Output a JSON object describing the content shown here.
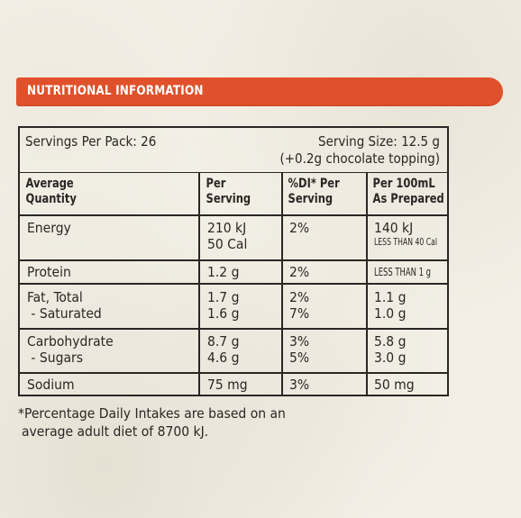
{
  "banner": {
    "title": "NUTRITIONAL INFORMATION"
  },
  "panel": {
    "servings_per_pack": "Servings Per Pack: 26",
    "serving_size_line1": "Serving Size: 12.5 g",
    "serving_size_line2": "(+0.2g chocolate topping)"
  },
  "columns": {
    "quantity": [
      "Average",
      "Quantity"
    ],
    "per_serving": [
      "Per",
      "Serving"
    ],
    "di_per_serving": [
      "%DI* Per",
      "Serving"
    ],
    "per_100ml": [
      "Per 100mL",
      "As Prepared"
    ]
  },
  "rows": [
    {
      "name": [
        "Energy"
      ],
      "per_serving": [
        "210 kJ",
        "50 Cal"
      ],
      "di": [
        "2%"
      ],
      "per_100ml": [
        "140 kJ"
      ],
      "per_100ml_small": [
        "LESS THAN 40 Cal"
      ]
    },
    {
      "name": [
        "Protein"
      ],
      "per_serving": [
        "1.2 g"
      ],
      "di": [
        "2%"
      ],
      "per_100ml": [],
      "per_100ml_small": [
        "LESS THAN 1 g"
      ]
    },
    {
      "name": [
        "Fat, Total",
        " - Saturated"
      ],
      "per_serving": [
        "1.7 g",
        "1.6 g"
      ],
      "di": [
        "2%",
        "7%"
      ],
      "per_100ml": [
        "1.1 g",
        "1.0 g"
      ],
      "per_100ml_small": []
    },
    {
      "name": [
        "Carbohydrate",
        " - Sugars"
      ],
      "per_serving": [
        "8.7 g",
        "4.6 g"
      ],
      "di": [
        "3%",
        "5%"
      ],
      "per_100ml": [
        "5.8 g",
        "3.0 g"
      ],
      "per_100ml_small": []
    },
    {
      "name": [
        "Sodium"
      ],
      "per_serving": [
        "75 mg"
      ],
      "di": [
        "3%"
      ],
      "per_100ml": [
        "50 mg"
      ],
      "per_100ml_small": []
    }
  ],
  "footnote": {
    "line1": "*Percentage Daily Intakes are based on an",
    "line2": "average adult diet of 8700 kJ."
  },
  "colors": {
    "banner": "#e0512b",
    "ink": "#2b2624",
    "background": "#f3efe6"
  }
}
